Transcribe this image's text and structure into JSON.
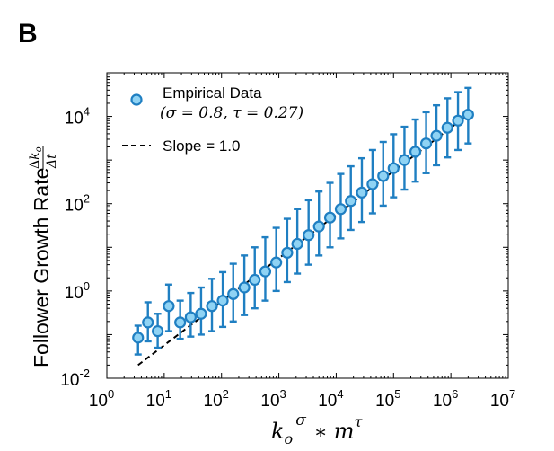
{
  "panel_label": "B",
  "chart_data": {
    "type": "scatter",
    "xscale": "log",
    "yscale": "log",
    "xlim": [
      1,
      10000000
    ],
    "ylim": [
      0.01,
      100000
    ],
    "xticks": [
      {
        "value": 1,
        "base": "10",
        "exp": "0"
      },
      {
        "value": 10,
        "base": "10",
        "exp": "1"
      },
      {
        "value": 100,
        "base": "10",
        "exp": "2"
      },
      {
        "value": 1000,
        "base": "10",
        "exp": "3"
      },
      {
        "value": 10000,
        "base": "10",
        "exp": "4"
      },
      {
        "value": 100000,
        "base": "10",
        "exp": "5"
      },
      {
        "value": 1000000,
        "base": "10",
        "exp": "6"
      },
      {
        "value": 10000000,
        "base": "10",
        "exp": "7"
      }
    ],
    "yticks": [
      {
        "value": 0.01,
        "base": "10",
        "exp": "-2"
      },
      {
        "value": 1,
        "base": "10",
        "exp": "0"
      },
      {
        "value": 100,
        "base": "10",
        "exp": "2"
      },
      {
        "value": 10000,
        "base": "10",
        "exp": "4"
      }
    ],
    "xlabel": {
      "k": "k",
      "o": "o",
      "sigma": "σ",
      "star": "∗",
      "m": "m",
      "tau": "τ"
    },
    "ylabel": {
      "text": "Follower Growth Rate",
      "num_d": "Δ",
      "num_k": "k",
      "num_o": "o",
      "den": "Δt"
    },
    "legend": {
      "position": "top-left",
      "entries": [
        {
          "label": "Empirical Data",
          "sublabel": "(σ = 0.8, τ = 0.27)",
          "marker": "circle"
        },
        {
          "label": "Slope = 1.0",
          "marker": "dashed-line"
        }
      ]
    },
    "series": [
      {
        "name": "Empirical Data",
        "params": {
          "sigma": 0.8,
          "tau": 0.27
        },
        "points": [
          {
            "x": 3.5,
            "y": 0.085,
            "lo": 0.035,
            "hi": 0.16
          },
          {
            "x": 5.2,
            "y": 0.19,
            "lo": 0.07,
            "hi": 0.55
          },
          {
            "x": 7.7,
            "y": 0.12,
            "lo": 0.05,
            "hi": 0.3
          },
          {
            "x": 12,
            "y": 0.45,
            "lo": 0.12,
            "hi": 1.4
          },
          {
            "x": 19,
            "y": 0.19,
            "lo": 0.08,
            "hi": 0.6
          },
          {
            "x": 29,
            "y": 0.25,
            "lo": 0.09,
            "hi": 0.9
          },
          {
            "x": 44,
            "y": 0.3,
            "lo": 0.1,
            "hi": 1.2
          },
          {
            "x": 68,
            "y": 0.45,
            "lo": 0.12,
            "hi": 1.9
          },
          {
            "x": 105,
            "y": 0.6,
            "lo": 0.15,
            "hi": 2.7
          },
          {
            "x": 160,
            "y": 0.85,
            "lo": 0.2,
            "hi": 4.2
          },
          {
            "x": 250,
            "y": 1.2,
            "lo": 0.28,
            "hi": 6.5
          },
          {
            "x": 380,
            "y": 1.8,
            "lo": 0.4,
            "hi": 10
          },
          {
            "x": 580,
            "y": 2.8,
            "lo": 0.6,
            "hi": 17
          },
          {
            "x": 900,
            "y": 4.5,
            "lo": 1,
            "hi": 28
          },
          {
            "x": 1400,
            "y": 7.5,
            "lo": 1.6,
            "hi": 45
          },
          {
            "x": 2100,
            "y": 12,
            "lo": 2.5,
            "hi": 75
          },
          {
            "x": 3300,
            "y": 19,
            "lo": 4,
            "hi": 120
          },
          {
            "x": 5000,
            "y": 30,
            "lo": 6.5,
            "hi": 190
          },
          {
            "x": 7800,
            "y": 48,
            "lo": 10,
            "hi": 300
          },
          {
            "x": 12000,
            "y": 75,
            "lo": 16,
            "hi": 480
          },
          {
            "x": 18000,
            "y": 115,
            "lo": 25,
            "hi": 720
          },
          {
            "x": 28000,
            "y": 180,
            "lo": 38,
            "hi": 1100
          },
          {
            "x": 43000,
            "y": 280,
            "lo": 60,
            "hi": 1700
          },
          {
            "x": 66000,
            "y": 430,
            "lo": 90,
            "hi": 2600
          },
          {
            "x": 100000,
            "y": 650,
            "lo": 140,
            "hi": 3900
          },
          {
            "x": 155000,
            "y": 1000,
            "lo": 210,
            "hi": 5800
          },
          {
            "x": 240000,
            "y": 1550,
            "lo": 320,
            "hi": 8500
          },
          {
            "x": 370000,
            "y": 2400,
            "lo": 500,
            "hi": 12500
          },
          {
            "x": 560000,
            "y": 3600,
            "lo": 760,
            "hi": 18000
          },
          {
            "x": 870000,
            "y": 5500,
            "lo": 1150,
            "hi": 26000
          },
          {
            "x": 1330000,
            "y": 8000,
            "lo": 1700,
            "hi": 36000
          },
          {
            "x": 2000000,
            "y": 11000,
            "lo": 2400,
            "hi": 45000
          }
        ]
      },
      {
        "name": "Slope = 1.0",
        "type": "line",
        "slope": 1.0,
        "x": [
          3.5,
          2000000
        ],
        "y": [
          0.02,
          11000
        ]
      }
    ],
    "colors": {
      "marker_fill": "#8fd3f4",
      "marker_edge": "#1f7fc2",
      "errorbar": "#1f7fc2",
      "line": "#000000",
      "axis": "#000000"
    }
  }
}
